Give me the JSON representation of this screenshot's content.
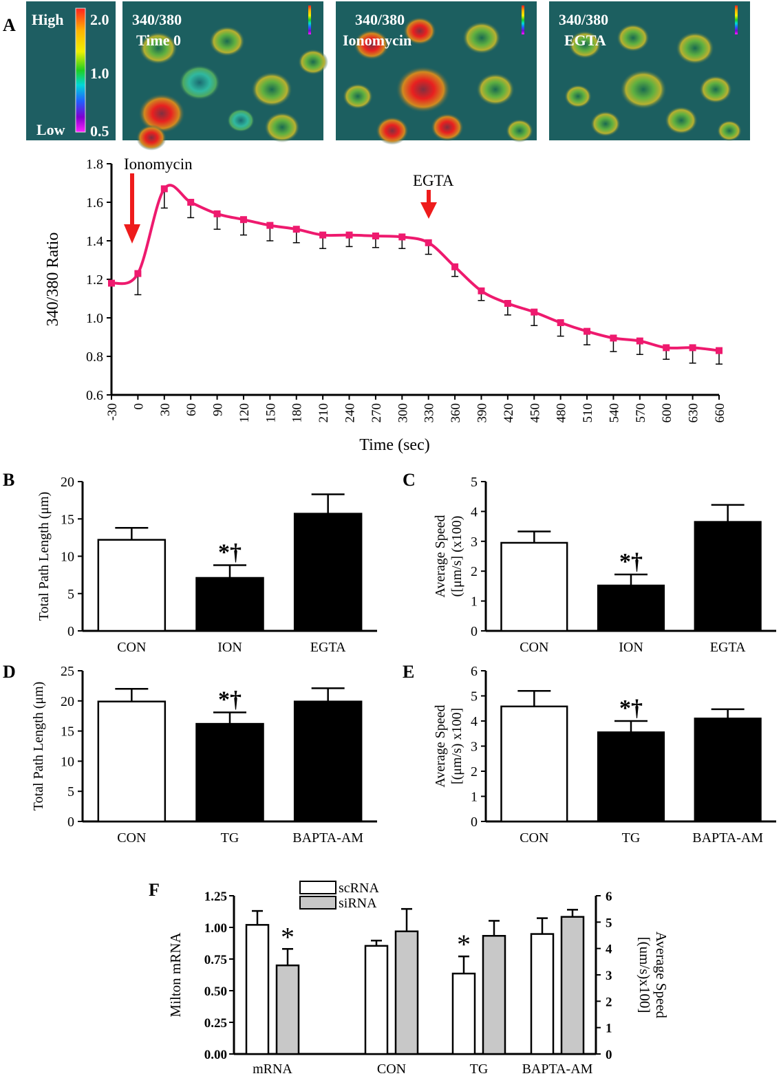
{
  "panel_labels": {
    "a": "A",
    "b": "B",
    "c": "C",
    "d": "D",
    "e": "E",
    "f": "F"
  },
  "colorbar": {
    "high": "High",
    "low": "Low",
    "ticks": [
      "2.0",
      "1.0",
      "0.5"
    ]
  },
  "images": [
    {
      "line1": "340/380",
      "line2": "Time 0"
    },
    {
      "line1": "340/380",
      "line2": "Ionomycin"
    },
    {
      "line1": "340/380",
      "line2": "EGTA"
    }
  ],
  "colors": {
    "line": "#ee1a6e",
    "arrow": "#ee1c1c",
    "bar_black": "#000000",
    "bar_white": "#ffffff",
    "bar_gray": "#c8c8c8"
  },
  "chart_data": [
    {
      "id": "A",
      "type": "line",
      "xlabel": "Time (sec)",
      "ylabel": "340/380 Ratio",
      "ylim": [
        0.6,
        1.8
      ],
      "yticks": [
        "0.6",
        "0.8",
        "1.0",
        "1.2",
        "1.4",
        "1.6",
        "1.8"
      ],
      "xticks": [
        "-30",
        "0",
        "30",
        "60",
        "90",
        "120",
        "150",
        "180",
        "210",
        "240",
        "270",
        "300",
        "330",
        "360",
        "390",
        "420",
        "450",
        "480",
        "510",
        "540",
        "570",
        "600",
        "630",
        "660"
      ],
      "x": [
        -30,
        0,
        30,
        60,
        90,
        120,
        150,
        180,
        210,
        240,
        270,
        300,
        330,
        360,
        390,
        420,
        450,
        480,
        510,
        540,
        570,
        600,
        630,
        660
      ],
      "y": [
        1.18,
        1.23,
        1.67,
        1.6,
        1.54,
        1.51,
        1.48,
        1.46,
        1.43,
        1.43,
        1.425,
        1.42,
        1.39,
        1.265,
        1.14,
        1.075,
        1.03,
        0.975,
        0.93,
        0.895,
        0.88,
        0.845,
        0.845,
        0.83
      ],
      "err": [
        0.0,
        0.11,
        0.1,
        0.08,
        0.08,
        0.08,
        0.08,
        0.07,
        0.07,
        0.06,
        0.06,
        0.06,
        0.06,
        0.05,
        0.05,
        0.06,
        0.07,
        0.07,
        0.07,
        0.07,
        0.07,
        0.06,
        0.08,
        0.07
      ],
      "annotations": [
        {
          "text": "Ionomycin",
          "x": -15
        },
        {
          "text": "EGTA",
          "x": 330
        }
      ]
    },
    {
      "id": "B",
      "type": "bar",
      "ylabel": "Total Path Length (μm)",
      "ylim": [
        0,
        20
      ],
      "yticks": [
        "0",
        "5",
        "10",
        "15",
        "20"
      ],
      "categories": [
        "CON",
        "ION",
        "EGTA"
      ],
      "values": [
        12.2,
        7.1,
        15.7
      ],
      "err": [
        1.6,
        1.7,
        2.6
      ],
      "fills": [
        "white",
        "black",
        "black"
      ],
      "marks": [
        "",
        "*†",
        ""
      ]
    },
    {
      "id": "C",
      "type": "bar",
      "ylabel": "Average Speed",
      "ylabel2": "([μm/s] (x100)",
      "ylim": [
        0,
        5
      ],
      "yticks": [
        "0",
        "1",
        "2",
        "3",
        "4",
        "5"
      ],
      "categories": [
        "CON",
        "ION",
        "EGTA"
      ],
      "values": [
        2.95,
        1.52,
        3.65
      ],
      "err": [
        0.38,
        0.37,
        0.57
      ],
      "fills": [
        "white",
        "black",
        "black"
      ],
      "marks": [
        "",
        "*†",
        ""
      ]
    },
    {
      "id": "D",
      "type": "bar",
      "ylabel": "Total Path  Length (μm)",
      "ylim": [
        0,
        25
      ],
      "yticks": [
        "0",
        "5",
        "10",
        "15",
        "20",
        "25"
      ],
      "categories": [
        "CON",
        "TG",
        "BAPTA-AM"
      ],
      "values": [
        19.9,
        16.2,
        19.9
      ],
      "err": [
        2.1,
        1.9,
        2.2
      ],
      "fills": [
        "white",
        "black",
        "black"
      ],
      "marks": [
        "",
        "*†",
        ""
      ]
    },
    {
      "id": "E",
      "type": "bar",
      "ylabel": "Average Speed",
      "ylabel2": "[(μm/s) x100]",
      "ylim": [
        0,
        6
      ],
      "yticks": [
        "0",
        "1",
        "2",
        "3",
        "4",
        "5",
        "6"
      ],
      "categories": [
        "CON",
        "TG",
        "BAPTA-AM"
      ],
      "values": [
        4.58,
        3.55,
        4.1
      ],
      "err": [
        0.62,
        0.45,
        0.37
      ],
      "fills": [
        "white",
        "black",
        "black"
      ],
      "marks": [
        "",
        "*†",
        ""
      ]
    },
    {
      "id": "F",
      "type": "bar",
      "ylabel": "Milton mRNA",
      "ylabel_right": "Average Speed",
      "ylabel_right2": "[(um/s)x100]",
      "ylim": [
        0,
        1.25
      ],
      "yticks": [
        "0.00",
        "0.25",
        "0.50",
        "0.75",
        "1.00",
        "1.25"
      ],
      "ylim_right": [
        0,
        6
      ],
      "yticks_right": [
        "0",
        "1",
        "2",
        "3",
        "4",
        "5",
        "6"
      ],
      "categories": [
        "mRNA",
        "CON",
        "TG",
        "BAPTA-AM"
      ],
      "series": [
        {
          "name": "scRNA",
          "values": [
            1.02,
            4.1,
            3.05,
            4.55
          ],
          "err": [
            0.11,
            0.2,
            0.65,
            0.6
          ],
          "axis": [
            "left",
            "right",
            "right",
            "right"
          ],
          "marks": [
            "",
            "",
            "*",
            ""
          ]
        },
        {
          "name": "siRNA",
          "values": [
            0.7,
            4.65,
            4.48,
            5.2
          ],
          "err": [
            0.13,
            0.85,
            0.57,
            0.27
          ],
          "axis": [
            "left",
            "right",
            "right",
            "right"
          ],
          "marks": [
            "*",
            "",
            "",
            ""
          ]
        }
      ]
    }
  ]
}
